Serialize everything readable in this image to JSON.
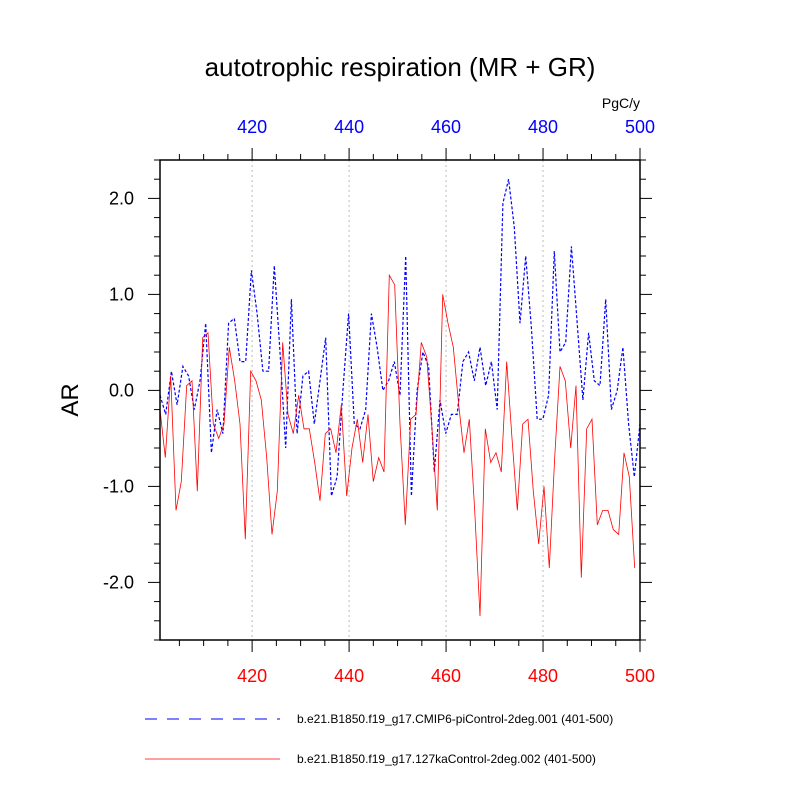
{
  "chart_data": {
    "type": "line",
    "title": "autotrophic respiration (MR + GR)",
    "units": "PgC/y",
    "ylabel": "AR",
    "xlim": [
      401,
      500
    ],
    "ylim": [
      -2.6,
      2.4
    ],
    "x_start": 401,
    "x_ticks": [
      420,
      440,
      460,
      480,
      500
    ],
    "x_tick_labels": [
      "420",
      "440",
      "460",
      "480",
      "500"
    ],
    "x_minor_step": 5,
    "y_ticks": [
      2.0,
      1.0,
      0.0,
      -1.0,
      -2.0
    ],
    "y_tick_labels": [
      "2.0",
      "1.0",
      "0.0",
      "-1.0",
      "-2.0"
    ],
    "y_minor_step": 0.2,
    "grid_x": [
      420,
      440,
      460,
      480
    ],
    "series": [
      {
        "name": "b.e21.B1850.f19_g17.CMIP6-piControl-2deg.001 (401-500)",
        "color": "#0000ff",
        "style": "dashed",
        "values": [
          -0.05,
          -0.25,
          0.2,
          -0.15,
          0.25,
          0.15,
          -0.2,
          0.1,
          0.7,
          -0.65,
          -0.2,
          -0.45,
          0.7,
          0.75,
          0.3,
          0.3,
          1.25,
          0.8,
          0.2,
          0.2,
          1.3,
          0.4,
          -0.6,
          0.95,
          -0.45,
          0.15,
          0.2,
          -0.35,
          0.1,
          0.55,
          -1.1,
          -0.9,
          0.0,
          0.8,
          -0.35,
          -0.4,
          -0.2,
          0.8,
          0.45,
          0.0,
          0.1,
          0.3,
          -0.05,
          1.4,
          -1.1,
          0.0,
          0.4,
          0.25,
          -0.85,
          -0.1,
          -0.45,
          -0.25,
          -0.25,
          0.3,
          0.4,
          0.1,
          0.45,
          0.05,
          0.3,
          -0.2,
          1.95,
          2.2,
          1.7,
          0.7,
          1.4,
          0.65,
          -0.3,
          -0.3,
          -0.05,
          1.45,
          0.4,
          0.5,
          1.5,
          0.7,
          -0.1,
          0.6,
          0.1,
          0.05,
          0.95,
          -0.2,
          0.0,
          0.45,
          -0.35,
          -0.9,
          -0.35
        ],
        "x_step": 1.1786
      },
      {
        "name": "b.e21.B1850.f19_g17.127kaControl-2deg.002 (401-500)",
        "color": "#ff0000",
        "style": "solid",
        "values": [
          -0.2,
          -0.7,
          0.15,
          -1.25,
          -0.95,
          0.05,
          0.1,
          -1.05,
          0.55,
          0.6,
          -0.35,
          -0.5,
          -0.35,
          0.45,
          0.1,
          -0.35,
          -1.55,
          0.2,
          0.1,
          -0.1,
          -0.7,
          -1.5,
          -1.05,
          0.5,
          -0.25,
          -0.45,
          -0.05,
          -0.4,
          -0.4,
          -0.75,
          -1.15,
          -0.45,
          -0.4,
          -0.65,
          -0.15,
          -1.1,
          -0.6,
          -0.3,
          -0.75,
          -0.25,
          -0.95,
          -0.7,
          -0.85,
          1.2,
          1.1,
          -0.35,
          -1.4,
          -0.3,
          -0.25,
          0.5,
          0.35,
          -0.4,
          -1.25,
          1.0,
          0.7,
          0.45,
          -0.15,
          -0.65,
          -0.3,
          -1.25,
          -2.35,
          -0.4,
          -0.75,
          -0.65,
          -0.85,
          0.3,
          -0.5,
          -1.25,
          -0.35,
          -0.3,
          -1.05,
          -1.6,
          -1.0,
          -1.85,
          -0.7,
          0.25,
          0.1,
          -0.6,
          0.05,
          -1.95,
          -0.4,
          -0.3,
          -1.4,
          -1.25,
          -1.25,
          -1.45,
          -1.5,
          -0.65,
          -0.9,
          -1.85
        ],
        "x_step": 1.1
      }
    ]
  }
}
